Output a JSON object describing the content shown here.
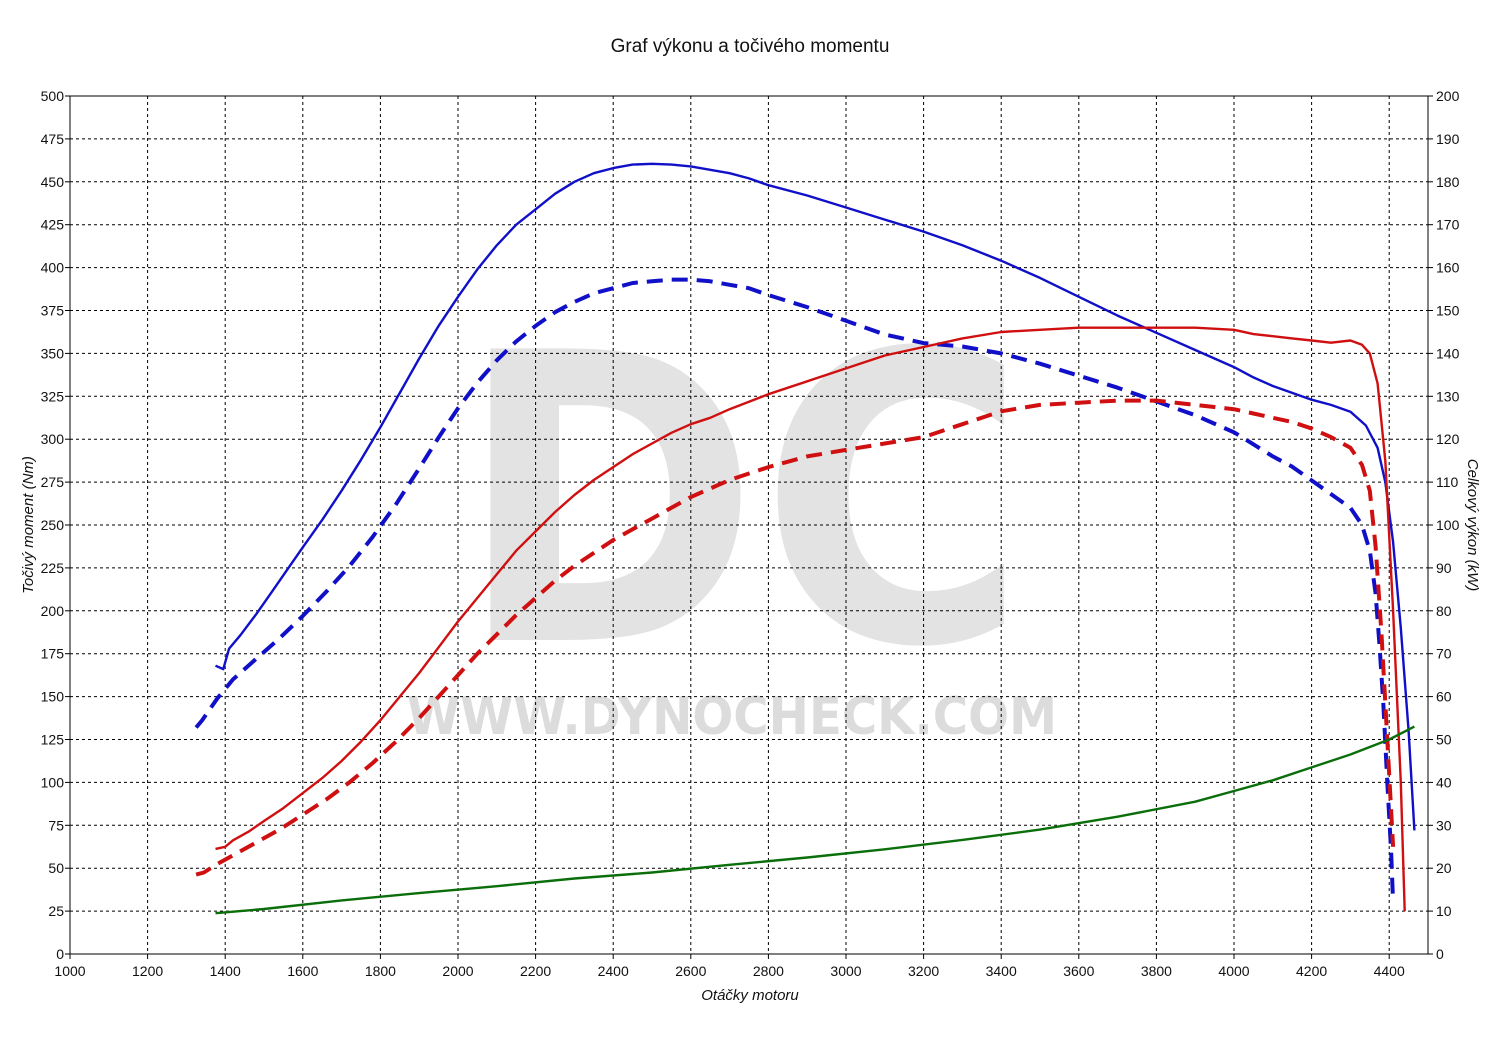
{
  "chart_data": {
    "type": "line",
    "title": "Graf výkonu a točivého momentu",
    "xlabel": "Otáčky motoru",
    "ylabel_left": "Točivý moment (Nm)",
    "ylabel_right": "Celkový výkon (kW)",
    "xlim": [
      1000,
      4500
    ],
    "ylim_left": [
      0,
      500
    ],
    "ylim_right": [
      0,
      200
    ],
    "x_ticks": [
      1000,
      1200,
      1400,
      1600,
      1800,
      2000,
      2200,
      2400,
      2600,
      2800,
      3000,
      3200,
      3400,
      3600,
      3800,
      4000,
      4200,
      4400
    ],
    "y_ticks_left": [
      0,
      25,
      50,
      75,
      100,
      125,
      150,
      175,
      200,
      225,
      250,
      275,
      300,
      325,
      350,
      375,
      400,
      425,
      450,
      475,
      500
    ],
    "y_ticks_right": [
      0,
      10,
      20,
      30,
      40,
      50,
      60,
      70,
      80,
      90,
      100,
      110,
      120,
      130,
      140,
      150,
      160,
      170,
      180,
      190,
      200
    ],
    "grid": true,
    "watermark": {
      "letters": "DC",
      "url": "WWW.DYNOCHECK.COM"
    },
    "colors": {
      "torque": "#1010c8",
      "power": "#d01010",
      "loss": "#0a6e0a",
      "grid": "#000000",
      "watermark": "#e3e3e3"
    },
    "series": [
      {
        "key": "torque_tuned",
        "axis": "left",
        "style": "solid",
        "color": "#1010c8",
        "points": [
          [
            1375,
            168
          ],
          [
            1395,
            166
          ],
          [
            1410,
            178
          ],
          [
            1440,
            186
          ],
          [
            1480,
            198
          ],
          [
            1520,
            211
          ],
          [
            1560,
            224
          ],
          [
            1600,
            237
          ],
          [
            1650,
            253
          ],
          [
            1700,
            270
          ],
          [
            1750,
            288
          ],
          [
            1800,
            307
          ],
          [
            1850,
            327
          ],
          [
            1900,
            347
          ],
          [
            1950,
            366
          ],
          [
            2000,
            383
          ],
          [
            2050,
            399
          ],
          [
            2100,
            413
          ],
          [
            2150,
            425
          ],
          [
            2200,
            434
          ],
          [
            2250,
            443
          ],
          [
            2300,
            450
          ],
          [
            2350,
            455
          ],
          [
            2400,
            458
          ],
          [
            2450,
            460
          ],
          [
            2500,
            460.5
          ],
          [
            2550,
            460
          ],
          [
            2600,
            459
          ],
          [
            2650,
            457
          ],
          [
            2700,
            455
          ],
          [
            2750,
            452
          ],
          [
            2800,
            448
          ],
          [
            2900,
            442
          ],
          [
            3000,
            435
          ],
          [
            3100,
            428
          ],
          [
            3200,
            421
          ],
          [
            3300,
            413
          ],
          [
            3400,
            404
          ],
          [
            3500,
            394
          ],
          [
            3600,
            383
          ],
          [
            3700,
            372
          ],
          [
            3800,
            362
          ],
          [
            3900,
            352
          ],
          [
            4000,
            342
          ],
          [
            4050,
            336
          ],
          [
            4100,
            331
          ],
          [
            4150,
            327
          ],
          [
            4200,
            323
          ],
          [
            4250,
            320
          ],
          [
            4300,
            316
          ],
          [
            4340,
            308
          ],
          [
            4370,
            295
          ],
          [
            4390,
            275
          ],
          [
            4410,
            240
          ],
          [
            4430,
            190
          ],
          [
            4450,
            130
          ],
          [
            4465,
            72
          ]
        ]
      },
      {
        "key": "torque_stock",
        "axis": "left",
        "style": "dashed",
        "color": "#1010c8",
        "points": [
          [
            1325,
            132
          ],
          [
            1340,
            136
          ],
          [
            1380,
            149
          ],
          [
            1420,
            160
          ],
          [
            1480,
            172
          ],
          [
            1540,
            184
          ],
          [
            1600,
            197
          ],
          [
            1660,
            211
          ],
          [
            1720,
            226
          ],
          [
            1780,
            243
          ],
          [
            1840,
            262
          ],
          [
            1900,
            283
          ],
          [
            1950,
            301
          ],
          [
            2000,
            318
          ],
          [
            2050,
            333
          ],
          [
            2100,
            346
          ],
          [
            2150,
            357
          ],
          [
            2200,
            366
          ],
          [
            2250,
            374
          ],
          [
            2300,
            380
          ],
          [
            2350,
            385
          ],
          [
            2400,
            388
          ],
          [
            2450,
            391
          ],
          [
            2500,
            392
          ],
          [
            2550,
            393
          ],
          [
            2600,
            393
          ],
          [
            2650,
            392
          ],
          [
            2700,
            390
          ],
          [
            2750,
            388
          ],
          [
            2800,
            384
          ],
          [
            2900,
            377
          ],
          [
            3000,
            369
          ],
          [
            3100,
            361
          ],
          [
            3200,
            356
          ],
          [
            3300,
            354
          ],
          [
            3400,
            350
          ],
          [
            3500,
            344
          ],
          [
            3600,
            337
          ],
          [
            3700,
            330
          ],
          [
            3800,
            322
          ],
          [
            3900,
            314
          ],
          [
            4000,
            304
          ],
          [
            4050,
            297
          ],
          [
            4100,
            290
          ],
          [
            4150,
            284
          ],
          [
            4200,
            276
          ],
          [
            4250,
            268
          ],
          [
            4300,
            260
          ],
          [
            4330,
            250
          ],
          [
            4350,
            235
          ],
          [
            4365,
            210
          ],
          [
            4375,
            180
          ],
          [
            4385,
            145
          ],
          [
            4395,
            100
          ],
          [
            4405,
            60
          ],
          [
            4410,
            30
          ]
        ]
      },
      {
        "key": "power_tuned",
        "axis": "right",
        "style": "solid",
        "color": "#d01010",
        "points": [
          [
            1375,
            24.5
          ],
          [
            1400,
            25
          ],
          [
            1420,
            26.5
          ],
          [
            1460,
            28.5
          ],
          [
            1500,
            31
          ],
          [
            1550,
            34
          ],
          [
            1600,
            37.5
          ],
          [
            1650,
            41
          ],
          [
            1700,
            45
          ],
          [
            1750,
            49.5
          ],
          [
            1800,
            54.5
          ],
          [
            1850,
            60
          ],
          [
            1900,
            65.5
          ],
          [
            1950,
            71.5
          ],
          [
            2000,
            77.5
          ],
          [
            2050,
            83
          ],
          [
            2100,
            88.5
          ],
          [
            2150,
            94
          ],
          [
            2200,
            98.5
          ],
          [
            2250,
            103
          ],
          [
            2300,
            107
          ],
          [
            2350,
            110.5
          ],
          [
            2400,
            113.5
          ],
          [
            2450,
            116.5
          ],
          [
            2500,
            119
          ],
          [
            2550,
            121.5
          ],
          [
            2600,
            123.5
          ],
          [
            2650,
            125
          ],
          [
            2700,
            127
          ],
          [
            2800,
            130.5
          ],
          [
            2900,
            133.5
          ],
          [
            3000,
            136.5
          ],
          [
            3100,
            139.5
          ],
          [
            3200,
            141.5
          ],
          [
            3300,
            143.5
          ],
          [
            3400,
            145
          ],
          [
            3500,
            145.5
          ],
          [
            3600,
            146
          ],
          [
            3700,
            146
          ],
          [
            3800,
            146
          ],
          [
            3900,
            146
          ],
          [
            4000,
            145.5
          ],
          [
            4050,
            144.5
          ],
          [
            4100,
            144
          ],
          [
            4150,
            143.5
          ],
          [
            4200,
            143
          ],
          [
            4250,
            142.5
          ],
          [
            4300,
            143
          ],
          [
            4330,
            142
          ],
          [
            4350,
            140
          ],
          [
            4370,
            133
          ],
          [
            4390,
            115
          ],
          [
            4410,
            80
          ],
          [
            4430,
            40
          ],
          [
            4440,
            10
          ]
        ]
      },
      {
        "key": "power_stock",
        "axis": "right",
        "style": "dashed",
        "color": "#d01010",
        "points": [
          [
            1325,
            18.5
          ],
          [
            1345,
            19
          ],
          [
            1380,
            21
          ],
          [
            1420,
            23
          ],
          [
            1480,
            26
          ],
          [
            1540,
            29
          ],
          [
            1600,
            32.5
          ],
          [
            1660,
            36
          ],
          [
            1720,
            40
          ],
          [
            1780,
            44.5
          ],
          [
            1840,
            49.5
          ],
          [
            1900,
            55
          ],
          [
            1950,
            60
          ],
          [
            2000,
            65
          ],
          [
            2050,
            70
          ],
          [
            2100,
            74.5
          ],
          [
            2150,
            79
          ],
          [
            2200,
            83
          ],
          [
            2250,
            87
          ],
          [
            2300,
            90.5
          ],
          [
            2350,
            93.5
          ],
          [
            2400,
            96.5
          ],
          [
            2450,
            99
          ],
          [
            2500,
            101.5
          ],
          [
            2550,
            104
          ],
          [
            2600,
            106.5
          ],
          [
            2650,
            108.5
          ],
          [
            2700,
            110.5
          ],
          [
            2750,
            112
          ],
          [
            2800,
            113.5
          ],
          [
            2900,
            116
          ],
          [
            3000,
            117.5
          ],
          [
            3100,
            119
          ],
          [
            3200,
            120.5
          ],
          [
            3300,
            123.5
          ],
          [
            3400,
            126.5
          ],
          [
            3500,
            128
          ],
          [
            3600,
            128.5
          ],
          [
            3700,
            129
          ],
          [
            3800,
            129
          ],
          [
            3900,
            128
          ],
          [
            4000,
            127
          ],
          [
            4050,
            126
          ],
          [
            4100,
            125
          ],
          [
            4150,
            124
          ],
          [
            4200,
            122.5
          ],
          [
            4250,
            120.5
          ],
          [
            4300,
            118
          ],
          [
            4330,
            114
          ],
          [
            4350,
            108
          ],
          [
            4365,
            95
          ],
          [
            4380,
            75
          ],
          [
            4395,
            50
          ],
          [
            4410,
            25
          ]
        ]
      },
      {
        "key": "losses",
        "axis": "right",
        "style": "solid",
        "color": "#0a6e0a",
        "points": [
          [
            1375,
            9.5
          ],
          [
            1500,
            10.5
          ],
          [
            1700,
            12.5
          ],
          [
            1900,
            14.2
          ],
          [
            2100,
            15.8
          ],
          [
            2300,
            17.6
          ],
          [
            2500,
            19
          ],
          [
            2700,
            20.8
          ],
          [
            2900,
            22.5
          ],
          [
            3100,
            24.4
          ],
          [
            3300,
            26.6
          ],
          [
            3500,
            29
          ],
          [
            3700,
            32
          ],
          [
            3900,
            35.5
          ],
          [
            4000,
            38
          ],
          [
            4100,
            40.5
          ],
          [
            4200,
            43.5
          ],
          [
            4300,
            46.5
          ],
          [
            4400,
            50
          ],
          [
            4465,
            53
          ]
        ]
      }
    ]
  }
}
